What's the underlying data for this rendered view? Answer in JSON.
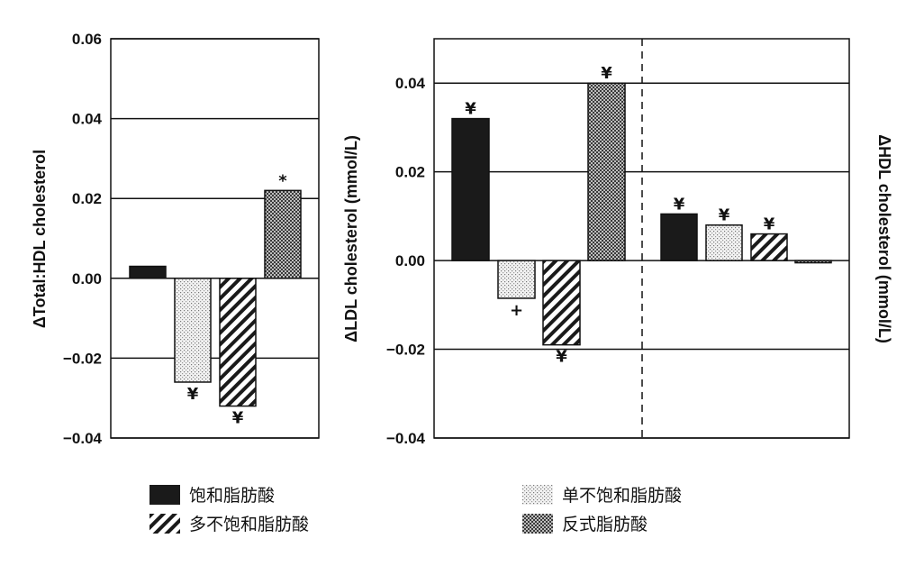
{
  "chart_data": [
    {
      "type": "bar",
      "ylabel": "ΔTotal:HDL cholesterol",
      "ylim": [
        -0.04,
        0.06
      ],
      "yticks": [
        "0.06",
        "0.04",
        "0.02",
        "0.00",
        "−0.02",
        "−0.04"
      ],
      "categories": [
        "饱和脂肪酸",
        "单不饱和脂肪酸",
        "多不饱和脂肪酸",
        "反式脂肪酸"
      ],
      "values": [
        0.003,
        -0.026,
        -0.032,
        0.022
      ],
      "markers": [
        "",
        "¥",
        "¥",
        "*"
      ]
    },
    {
      "type": "bar",
      "ylabel": "ΔLDL cholesterol (mmol/L)",
      "ylim": [
        -0.04,
        0.05
      ],
      "yticks": [
        "0.04",
        "0.02",
        "0.00",
        "−0.02",
        "−0.04"
      ],
      "categories": [
        "饱和脂肪酸",
        "单不饱和脂肪酸",
        "多不饱和脂肪酸",
        "反式脂肪酸"
      ],
      "values": [
        0.032,
        -0.0085,
        -0.019,
        0.04
      ],
      "markers": [
        "¥",
        "+",
        "¥",
        "¥"
      ]
    },
    {
      "type": "bar",
      "ylabel": "ΔHDL cholesterol (mmol/L)",
      "ylim": [
        -0.04,
        0.05
      ],
      "categories": [
        "饱和脂肪酸",
        "单不饱和脂肪酸",
        "多不饱和脂肪酸",
        "反式脂肪酸"
      ],
      "values": [
        0.0105,
        0.008,
        0.006,
        -0.0005
      ],
      "markers": [
        "¥",
        "¥",
        "¥",
        ""
      ]
    }
  ],
  "legend": [
    {
      "label": "饱和脂肪酸",
      "pattern": "solid"
    },
    {
      "label": "单不饱和脂肪酸",
      "pattern": "dots"
    },
    {
      "label": "多不饱和脂肪酸",
      "pattern": "hatch"
    },
    {
      "label": "反式脂肪酸",
      "pattern": "cross"
    }
  ],
  "colors": {
    "bar_dark": "#1a1a1a",
    "axis": "#111111",
    "background": "#ffffff"
  }
}
